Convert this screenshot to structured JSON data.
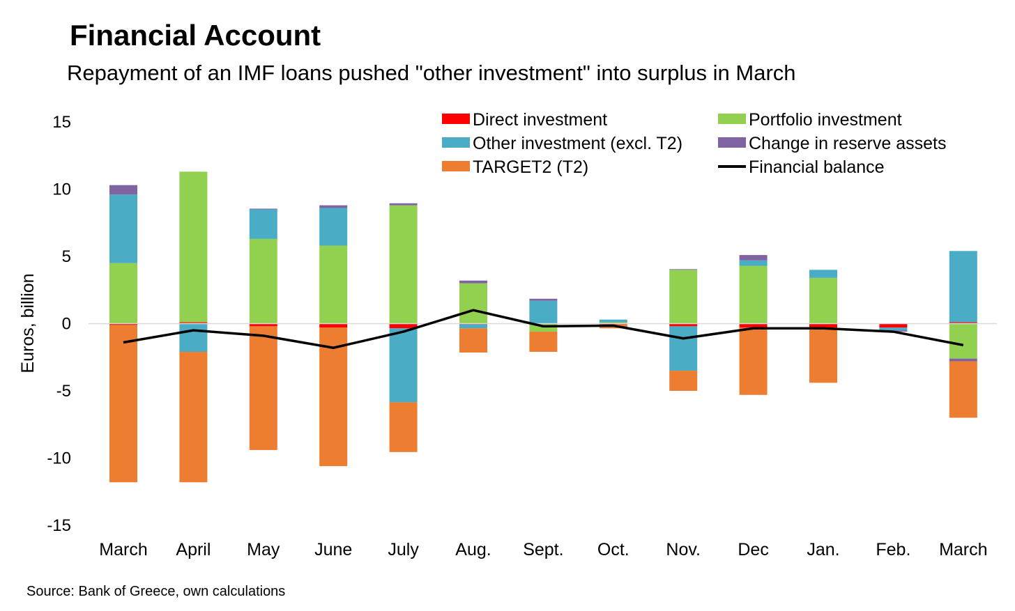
{
  "title": "Financial Account",
  "subtitle": "Repayment of an IMF loans pushed \"other investment\" into surplus in March",
  "source": "Source: Bank of Greece, own calculations",
  "chart_data": {
    "type": "bar",
    "stacked": true,
    "categories": [
      "March",
      "April",
      "May",
      "June",
      "July",
      "Aug.",
      "Sept.",
      "Oct.",
      "Nov.",
      "Dec",
      "Jan.",
      "Feb.",
      "March"
    ],
    "ylabel": "Euros, billion",
    "xlabel": "",
    "ylim": [
      -15,
      15
    ],
    "yticks": [
      15,
      10,
      5,
      0,
      -5,
      -10,
      -15
    ],
    "ytick_labels": [
      "15",
      "10",
      "5",
      "0",
      "-5",
      "-10",
      "-15"
    ],
    "grid": false,
    "zero_line": true,
    "legend_position": "top-right",
    "series": [
      {
        "name": "Direct investment",
        "color": "#FF0000",
        "values": [
          -0.1,
          0.1,
          -0.2,
          -0.3,
          -0.35,
          -0.05,
          0,
          -0.05,
          -0.2,
          -0.3,
          -0.3,
          -0.3,
          0.1
        ]
      },
      {
        "name": "Portfolio investment",
        "color": "#92D050",
        "values": [
          4.5,
          11.2,
          6.3,
          5.8,
          8.8,
          3.0,
          -0.6,
          0.1,
          4.0,
          4.3,
          3.4,
          0,
          -2.6
        ]
      },
      {
        "name": "Other investment (excl. T2)",
        "color": "#4BACC6",
        "values": [
          5.1,
          -2.1,
          2.2,
          2.8,
          -5.5,
          -0.3,
          1.7,
          0.2,
          -3.3,
          0.4,
          0.6,
          -0.2,
          5.3
        ]
      },
      {
        "name": "Change in reserve assets",
        "color": "#8064A2",
        "values": [
          0.7,
          0,
          0.05,
          0.2,
          0.15,
          0.2,
          0.15,
          0,
          0.05,
          0.4,
          0,
          -0.1,
          -0.2
        ]
      },
      {
        "name": "TARGET2 (T2)",
        "color": "#ED7D31",
        "values": [
          -11.7,
          -9.7,
          -9.2,
          -10.3,
          -3.7,
          -1.8,
          -1.5,
          -0.3,
          -1.5,
          -5.0,
          -4.1,
          0,
          -4.2
        ]
      }
    ],
    "line_series": {
      "name": "Financial balance",
      "color": "#000000",
      "values": [
        -1.4,
        -0.5,
        -0.9,
        -1.8,
        -0.6,
        1.0,
        -0.2,
        -0.15,
        -1.1,
        -0.35,
        -0.35,
        -0.6,
        -1.6
      ]
    },
    "legend_order": [
      "Direct investment",
      "Portfolio investment",
      "Other investment (excl. T2)",
      "Change in reserve assets",
      "TARGET2 (T2)",
      "Financial balance"
    ]
  }
}
